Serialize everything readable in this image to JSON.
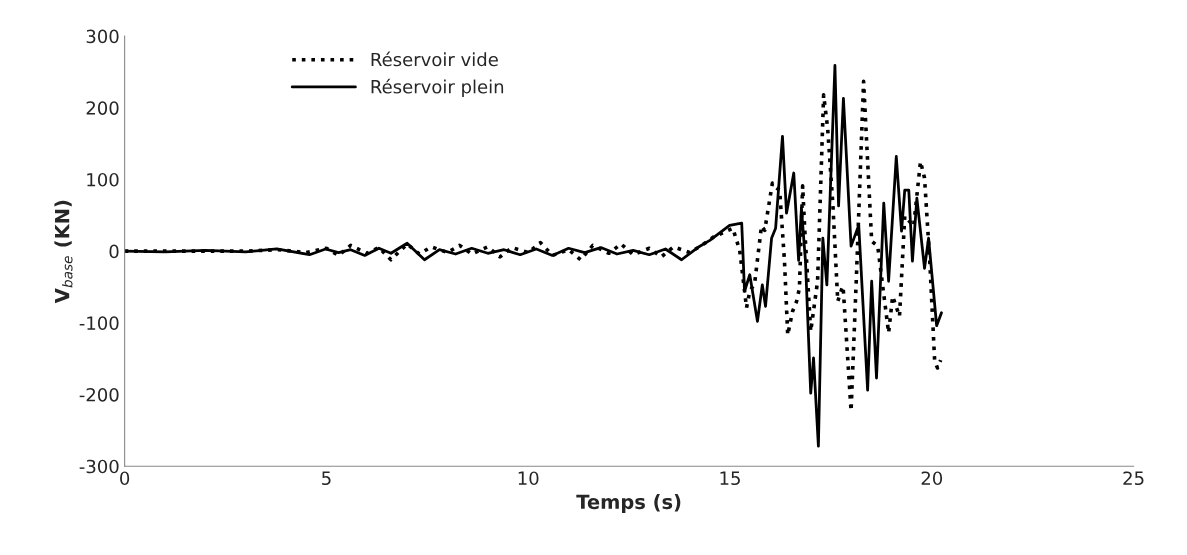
{
  "chart_data": {
    "type": "line",
    "xlabel": "Temps (s)",
    "ylabel": "V$_{base}$ (KN)",
    "xlim": [
      0,
      25
    ],
    "xticks": [
      0,
      5,
      10,
      15,
      20,
      25
    ],
    "ylim": [
      -300,
      300
    ],
    "yticks": [
      -300,
      -200,
      -100,
      0,
      100,
      200,
      300
    ],
    "grid": false,
    "legend": "top left",
    "marker": "none",
    "series": [
      {
        "name": "Réservoir vide",
        "color": "#000000",
        "line_style": "dotted",
        "x": [
          0,
          1,
          2,
          3,
          3.8,
          4.5,
          5.0,
          5.3,
          5.6,
          6.0,
          6.3,
          6.6,
          7.0,
          7.3,
          7.6,
          8.0,
          8.3,
          8.6,
          9.0,
          9.3,
          9.6,
          10.0,
          10.3,
          10.6,
          11.0,
          11.3,
          11.6,
          12.0,
          12.3,
          12.6,
          13.0,
          13.3,
          13.6,
          14.0,
          14.3,
          14.6,
          15.07,
          15.24,
          15.41,
          15.49,
          15.61,
          15.78,
          15.86,
          16.05,
          16.15,
          16.23,
          16.35,
          16.43,
          16.55,
          16.65,
          16.72,
          16.8,
          16.85,
          17.0,
          17.17,
          17.32,
          17.42,
          17.55,
          17.67,
          17.79,
          17.81,
          18.0,
          18.14,
          18.31,
          18.51,
          18.66,
          18.93,
          19.03,
          19.2,
          19.33,
          19.55,
          19.72,
          19.82,
          19.95,
          20.07,
          20.14,
          20.22
        ],
        "values": [
          0,
          0,
          0,
          0,
          2,
          -2,
          4,
          -6,
          8,
          -3,
          5,
          -12,
          10,
          -4,
          6,
          -2,
          8,
          -4,
          6,
          -8,
          5,
          -2,
          12,
          -6,
          2,
          -12,
          8,
          -3,
          10,
          -5,
          4,
          -8,
          6,
          -2,
          8,
          20,
          32,
          1,
          -79,
          -56,
          -45,
          35,
          29,
          95,
          88,
          85,
          -14,
          -117,
          -84,
          -70,
          -52,
          91,
          32,
          -112,
          -42,
          218,
          171,
          64,
          -70,
          -49,
          -56,
          -223,
          -24,
          237,
          14,
          7,
          -114,
          -63,
          -91,
          49,
          35,
          125,
          102,
          -14,
          -152,
          -163,
          -152
        ]
      },
      {
        "name": "Réservoir plein",
        "color": "#000000",
        "line_style": "solid",
        "x": [
          0,
          1,
          2,
          3,
          3.77,
          4.58,
          4.98,
          5.3,
          5.6,
          5.95,
          6.3,
          6.6,
          7.0,
          7.43,
          7.8,
          8.2,
          8.6,
          9.0,
          9.4,
          9.8,
          10.2,
          10.6,
          11.0,
          11.4,
          11.8,
          12.2,
          12.6,
          13.0,
          13.4,
          13.8,
          14.2,
          14.5,
          14.99,
          15.29,
          15.36,
          15.49,
          15.68,
          15.8,
          15.88,
          16.03,
          16.13,
          16.3,
          16.4,
          16.58,
          16.7,
          16.77,
          16.87,
          17.0,
          17.07,
          17.19,
          17.3,
          17.4,
          17.6,
          17.69,
          17.81,
          18.0,
          18.19,
          18.41,
          18.51,
          18.63,
          18.81,
          18.93,
          19.12,
          19.25,
          19.33,
          19.43,
          19.52,
          19.63,
          19.82,
          19.92,
          20.12,
          20.24
        ],
        "values": [
          0,
          -1,
          1,
          -1,
          3,
          -5,
          3,
          -2,
          2,
          -6,
          4,
          -3,
          11,
          -12,
          2,
          -4,
          4,
          -3,
          2,
          -5,
          3,
          -6,
          4,
          -2,
          5,
          -4,
          1,
          -5,
          3,
          -12,
          5,
          15,
          36,
          39,
          -56,
          -33,
          -98,
          -47,
          -77,
          18,
          32,
          160,
          53,
          109,
          -13,
          60,
          -14,
          -198,
          -149,
          -272,
          18,
          -47,
          259,
          63,
          213,
          7,
          36,
          -194,
          -42,
          -177,
          67,
          -42,
          132,
          28,
          85,
          85,
          -14,
          74,
          -24,
          18,
          -104,
          -86
        ]
      }
    ]
  }
}
